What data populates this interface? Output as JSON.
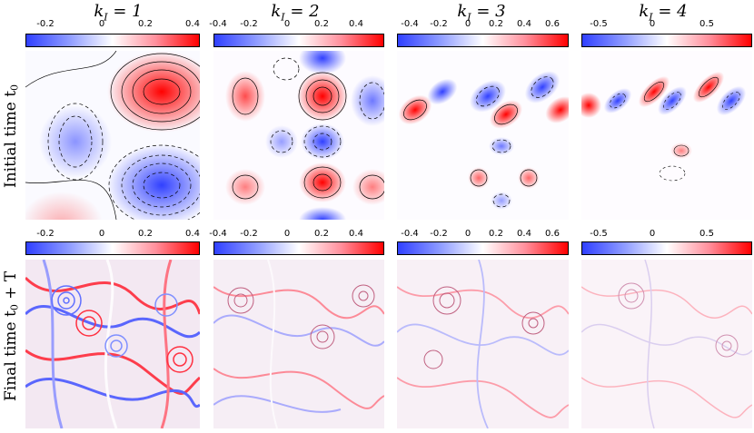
{
  "columns": [
    {
      "title_k": "k",
      "title_sub": "I",
      "title_eq": " = 1",
      "top_ticks": [
        "-0.2",
        "0",
        "0.2",
        "0.4"
      ],
      "bottom_ticks": [
        "-0.2",
        "0",
        "0.2",
        "0.4"
      ]
    },
    {
      "title_k": "k",
      "title_sub": "I",
      "title_eq": " = 2",
      "top_ticks": [
        "-0.4",
        "-0.2",
        "0",
        "0.2",
        "0.4"
      ],
      "bottom_ticks": [
        "-0.4",
        "-0.2",
        "0",
        "0.2",
        "0.4"
      ]
    },
    {
      "title_k": "k",
      "title_sub": "I",
      "title_eq": " = 3",
      "top_ticks": [
        "-0.4",
        "-0.2",
        "0",
        "0.2",
        "0.4",
        "0.6"
      ],
      "bottom_ticks": [
        "-0.4",
        "-0.2",
        "0",
        "0.2",
        "0.4",
        "0.6"
      ]
    },
    {
      "title_k": "k",
      "title_sub": "I",
      "title_eq": " = 4",
      "top_ticks": [
        "-0.5",
        "0",
        "0.5"
      ],
      "bottom_ticks": [
        "-0.5",
        "0",
        "0.5"
      ]
    }
  ],
  "rows": {
    "initial_label": "Initial time  t",
    "initial_sub": "0",
    "final_label": "Final time  t",
    "final_sub": "0",
    "final_suffix": " + T"
  },
  "colormap": {
    "negative": "#3040ff",
    "zero": "#ffffff",
    "positive": "#ff0000"
  }
}
